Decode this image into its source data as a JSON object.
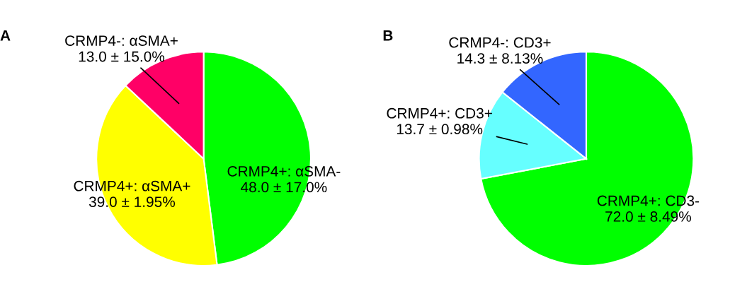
{
  "chart_data": [
    {
      "type": "pie",
      "title": "A",
      "categories": [
        "CRMP4+: αSMA-",
        "CRMP4+: αSMA+",
        "CRMP4-: αSMA+"
      ],
      "values": [
        48.0,
        39.0,
        13.0
      ],
      "colors": [
        "#00ff00",
        "#ffff00",
        "#ff0066"
      ],
      "value_labels": [
        "48.0 ± 17.0%",
        "39.0 ± 1.95%",
        "13.0 ± 15.0%"
      ]
    },
    {
      "type": "pie",
      "title": "B",
      "categories": [
        "CRMP4+: CD3-",
        "CRMP4+: CD3+",
        "CRMP4-: CD3+"
      ],
      "values": [
        72.0,
        13.7,
        14.3
      ],
      "colors": [
        "#00ff00",
        "#66ffff",
        "#3366ff"
      ],
      "value_labels": [
        "72.0 ± 8.49%",
        "13.7 ± 0.98%",
        "14.3 ± 8.13%"
      ]
    }
  ]
}
